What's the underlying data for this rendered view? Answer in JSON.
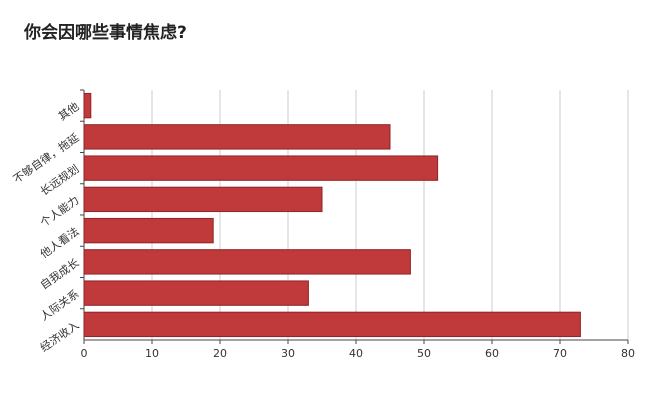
{
  "chart_data": {
    "type": "barh",
    "title": "你会因哪些事情焦虑?",
    "categories": [
      "其他",
      "不够自律，拖延",
      "长远规划",
      "个人能力",
      "他人看法",
      "自我成长",
      "人际关系",
      "经济收入"
    ],
    "values": [
      1,
      45,
      52,
      35,
      19,
      48,
      33,
      73
    ],
    "color": "#c0393b",
    "xlim": [
      0,
      80
    ],
    "xticks": [
      0,
      10,
      20,
      30,
      40,
      50,
      60,
      70,
      80
    ],
    "grid": true
  }
}
